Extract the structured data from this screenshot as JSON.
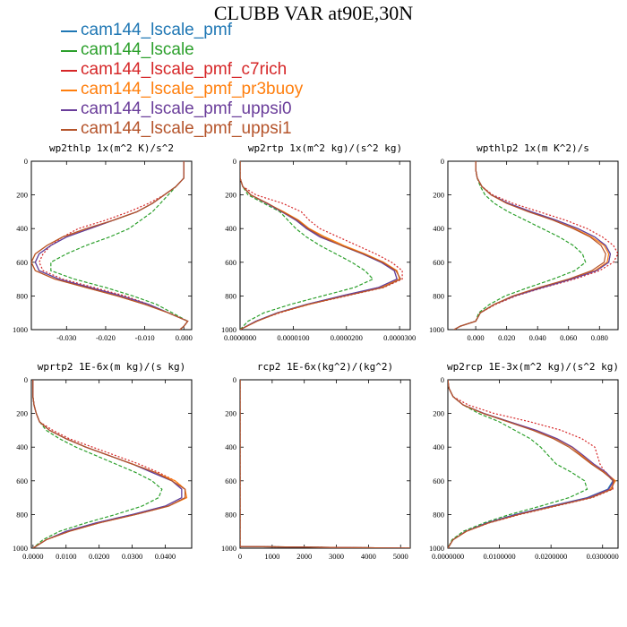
{
  "title": "CLUBB VAR at90E,30N",
  "series": [
    {
      "name": "cam144_lscale_pmf",
      "color": "#1f77b4",
      "dash": ""
    },
    {
      "name": "cam144_lscale",
      "color": "#2ca02c",
      "dash": "4,2"
    },
    {
      "name": "cam144_lscale_pmf_c7rich",
      "color": "#d62728",
      "dash": "2,2"
    },
    {
      "name": "cam144_lscale_pmf_pr3buoy",
      "color": "#ff7f0e",
      "dash": ""
    },
    {
      "name": "cam144_lscale_pmf_uppsi0",
      "color": "#6a3d9a",
      "dash": ""
    },
    {
      "name": "cam144_lscale_pmf_uppsi1",
      "color": "#b5542b",
      "dash": ""
    }
  ],
  "chart_data": [
    {
      "type": "line",
      "title": "wp2thlp  1x(m^2 K)/s^2",
      "xlim": [
        -0.039,
        0.002
      ],
      "ylim": [
        0,
        1000
      ],
      "y_inverted": true,
      "xticks": [
        -0.03,
        -0.02,
        -0.01,
        0.0
      ],
      "xtick_labels": [
        "-0.030",
        "-0.020",
        "-0.010",
        "0.000"
      ],
      "yticks": [
        0,
        200,
        400,
        600,
        800,
        1000
      ],
      "y": [
        0,
        100,
        150,
        200,
        250,
        300,
        350,
        400,
        450,
        500,
        550,
        600,
        650,
        700,
        750,
        800,
        850,
        900,
        950,
        980,
        1000
      ],
      "series_values": [
        [
          0,
          0,
          -0.002,
          -0.005,
          -0.008,
          -0.012,
          -0.018,
          -0.024,
          -0.03,
          -0.034,
          -0.037,
          -0.038,
          -0.037,
          -0.032,
          -0.024,
          -0.016,
          -0.009,
          -0.004,
          0.001,
          0.0,
          -0.001
        ],
        [
          0,
          0,
          -0.002,
          -0.004,
          -0.006,
          -0.008,
          -0.011,
          -0.014,
          -0.019,
          -0.025,
          -0.03,
          -0.034,
          -0.034,
          -0.028,
          -0.02,
          -0.013,
          -0.007,
          -0.003,
          0.001,
          0.0,
          -0.001
        ],
        [
          0,
          0,
          -0.002,
          -0.005,
          -0.009,
          -0.014,
          -0.02,
          -0.027,
          -0.031,
          -0.034,
          -0.036,
          -0.037,
          -0.036,
          -0.031,
          -0.023,
          -0.015,
          -0.009,
          -0.004,
          0.001,
          0.0,
          -0.001
        ],
        [
          0,
          0,
          -0.002,
          -0.005,
          -0.008,
          -0.012,
          -0.018,
          -0.024,
          -0.031,
          -0.035,
          -0.038,
          -0.039,
          -0.038,
          -0.033,
          -0.025,
          -0.017,
          -0.01,
          -0.004,
          0.001,
          0.0,
          -0.001
        ],
        [
          0,
          0,
          -0.002,
          -0.005,
          -0.008,
          -0.012,
          -0.018,
          -0.024,
          -0.03,
          -0.034,
          -0.037,
          -0.038,
          -0.037,
          -0.032,
          -0.024,
          -0.016,
          -0.009,
          -0.004,
          0.001,
          0.0,
          -0.001
        ],
        [
          0,
          0,
          -0.002,
          -0.005,
          -0.008,
          -0.012,
          -0.018,
          -0.025,
          -0.031,
          -0.035,
          -0.038,
          -0.039,
          -0.038,
          -0.033,
          -0.025,
          -0.017,
          -0.01,
          -0.004,
          0.001,
          0.0,
          -0.001
        ]
      ]
    },
    {
      "type": "line",
      "title": "wp2rtp  1x(m^2 kg)/(s^2 kg)",
      "xlim": [
        0,
        3.2e-05
      ],
      "ylim": [
        0,
        1000
      ],
      "y_inverted": true,
      "xticks": [
        0,
        1e-05,
        2e-05,
        3e-05
      ],
      "xtick_labels": [
        "0.0000000",
        "0.0000100",
        "0.0000200",
        "0.0000300"
      ],
      "yticks": [
        0,
        200,
        400,
        600,
        800,
        1000
      ],
      "y": [
        0,
        100,
        150,
        200,
        250,
        300,
        350,
        400,
        450,
        500,
        550,
        600,
        650,
        700,
        750,
        800,
        850,
        900,
        950,
        1000
      ],
      "series_values": [
        [
          0,
          0,
          5e-07,
          2e-06,
          5e-06,
          8e-06,
          1.05e-05,
          1.25e-05,
          1.55e-05,
          1.9e-05,
          2.3e-05,
          2.65e-05,
          2.9e-05,
          2.95e-05,
          2.6e-05,
          1.9e-05,
          1.25e-05,
          7e-06,
          3e-06,
          0
        ],
        [
          0,
          0,
          5e-07,
          1.5e-06,
          4.5e-06,
          7.5e-06,
          9e-06,
          1.05e-05,
          1.25e-05,
          1.5e-05,
          1.8e-05,
          2.1e-05,
          2.35e-05,
          2.5e-05,
          2.15e-05,
          1.55e-05,
          9.5e-06,
          4.5e-06,
          1.5e-06,
          0
        ],
        [
          0,
          0,
          5e-07,
          3e-06,
          8e-06,
          1.15e-05,
          1.3e-05,
          1.5e-05,
          1.85e-05,
          2.2e-05,
          2.55e-05,
          2.85e-05,
          3.05e-05,
          3.05e-05,
          2.7e-05,
          2e-05,
          1.3e-05,
          7.5e-06,
          3e-06,
          0
        ],
        [
          0,
          0,
          5e-07,
          2e-06,
          5e-06,
          8.2e-06,
          1.1e-05,
          1.3e-05,
          1.6e-05,
          1.95e-05,
          2.35e-05,
          2.7e-05,
          2.95e-05,
          3e-05,
          2.65e-05,
          1.95e-05,
          1.3e-05,
          7.2e-06,
          3.2e-06,
          0
        ],
        [
          0,
          0,
          5e-07,
          2e-06,
          5e-06,
          7.8e-06,
          1.05e-05,
          1.25e-05,
          1.5e-05,
          1.9e-05,
          2.3e-05,
          2.65e-05,
          2.9e-05,
          2.95e-05,
          2.6e-05,
          1.9e-05,
          1.25e-05,
          7e-06,
          3e-06,
          0
        ],
        [
          0,
          0,
          5e-07,
          2e-06,
          5.2e-06,
          8e-06,
          1.08e-05,
          1.28e-05,
          1.55e-05,
          1.9e-05,
          2.32e-05,
          2.68e-05,
          2.93e-05,
          3.02e-05,
          2.68e-05,
          1.97e-05,
          1.28e-05,
          7.2e-06,
          3.2e-06,
          0
        ]
      ]
    },
    {
      "type": "line",
      "title": "wpthlp2  1x(m K^2)/s",
      "xlim": [
        -0.018,
        0.092
      ],
      "ylim": [
        0,
        1000
      ],
      "y_inverted": true,
      "xticks": [
        0,
        0.02,
        0.04,
        0.06,
        0.08
      ],
      "xtick_labels": [
        "0.000",
        "0.020",
        "0.040",
        "0.060",
        "0.080"
      ],
      "yticks": [
        0,
        200,
        400,
        600,
        800,
        1000
      ],
      "y": [
        0,
        50,
        100,
        150,
        200,
        250,
        300,
        350,
        400,
        450,
        500,
        550,
        600,
        650,
        700,
        750,
        800,
        850,
        900,
        950,
        980,
        1000
      ],
      "series_values": [
        [
          0,
          0,
          0.001,
          0.004,
          0.01,
          0.021,
          0.036,
          0.052,
          0.066,
          0.077,
          0.084,
          0.087,
          0.086,
          0.078,
          0.062,
          0.043,
          0.025,
          0.012,
          0.003,
          0.0,
          -0.01,
          -0.014
        ],
        [
          0,
          0,
          0.001,
          0.003,
          0.006,
          0.012,
          0.021,
          0.032,
          0.043,
          0.054,
          0.063,
          0.069,
          0.071,
          0.064,
          0.05,
          0.034,
          0.019,
          0.009,
          0.002,
          0.0,
          -0.01,
          -0.014
        ],
        [
          0,
          0,
          0.001,
          0.004,
          0.011,
          0.024,
          0.041,
          0.058,
          0.072,
          0.082,
          0.089,
          0.092,
          0.089,
          0.08,
          0.064,
          0.044,
          0.026,
          0.013,
          0.003,
          0.0,
          -0.01,
          -0.014
        ],
        [
          0,
          0,
          0.001,
          0.004,
          0.01,
          0.02,
          0.035,
          0.05,
          0.064,
          0.075,
          0.083,
          0.086,
          0.085,
          0.077,
          0.061,
          0.042,
          0.025,
          0.012,
          0.003,
          0.0,
          -0.01,
          -0.014
        ],
        [
          0,
          0,
          0.001,
          0.004,
          0.01,
          0.021,
          0.036,
          0.052,
          0.066,
          0.077,
          0.084,
          0.087,
          0.086,
          0.078,
          0.062,
          0.043,
          0.025,
          0.012,
          0.003,
          0.0,
          -0.01,
          -0.014
        ],
        [
          0,
          0,
          0.001,
          0.004,
          0.01,
          0.02,
          0.034,
          0.05,
          0.063,
          0.074,
          0.081,
          0.084,
          0.083,
          0.075,
          0.06,
          0.041,
          0.024,
          0.012,
          0.003,
          0.0,
          -0.01,
          -0.014
        ]
      ]
    },
    {
      "type": "line",
      "title": "wprtp2  1E-6x(m kg)/(s kg)",
      "xlim": [
        -0.0005,
        0.048
      ],
      "ylim": [
        0,
        1000
      ],
      "y_inverted": true,
      "xticks": [
        0,
        0.01,
        0.02,
        0.03,
        0.04
      ],
      "xtick_labels": [
        "0.0000",
        "0.0100",
        "0.0200",
        "0.0300",
        "0.0400"
      ],
      "yticks": [
        0,
        200,
        400,
        600,
        800,
        1000
      ],
      "y": [
        0,
        100,
        150,
        200,
        250,
        300,
        350,
        400,
        450,
        500,
        550,
        600,
        650,
        700,
        750,
        800,
        850,
        900,
        950,
        1000
      ],
      "series_values": [
        [
          0,
          0,
          0.0003,
          0.001,
          0.002,
          0.005,
          0.01,
          0.016,
          0.023,
          0.03,
          0.036,
          0.042,
          0.045,
          0.045,
          0.04,
          0.03,
          0.019,
          0.01,
          0.004,
          0
        ],
        [
          0,
          0,
          0.0003,
          0.001,
          0.002,
          0.004,
          0.008,
          0.013,
          0.019,
          0.025,
          0.031,
          0.036,
          0.039,
          0.038,
          0.033,
          0.025,
          0.016,
          0.008,
          0.003,
          0
        ],
        [
          0,
          0,
          0.0003,
          0.001,
          0.002,
          0.006,
          0.011,
          0.018,
          0.025,
          0.032,
          0.038,
          0.043,
          0.046,
          0.046,
          0.041,
          0.031,
          0.02,
          0.011,
          0.004,
          0
        ],
        [
          0,
          0,
          0.0003,
          0.001,
          0.002,
          0.005,
          0.01,
          0.016,
          0.023,
          0.03,
          0.037,
          0.043,
          0.046,
          0.0465,
          0.041,
          0.031,
          0.02,
          0.011,
          0.004,
          0
        ],
        [
          0,
          0,
          0.0003,
          0.001,
          0.002,
          0.005,
          0.01,
          0.016,
          0.023,
          0.03,
          0.036,
          0.042,
          0.045,
          0.045,
          0.04,
          0.03,
          0.019,
          0.01,
          0.004,
          0
        ],
        [
          0,
          0,
          0.0003,
          0.001,
          0.002,
          0.005,
          0.01,
          0.016,
          0.023,
          0.03,
          0.037,
          0.042,
          0.046,
          0.046,
          0.041,
          0.031,
          0.02,
          0.011,
          0.004,
          0
        ]
      ]
    },
    {
      "type": "line",
      "title": "rcp2  1E-6x(kg^2)/(kg^2)",
      "xlim": [
        0,
        5300
      ],
      "ylim": [
        0,
        1000
      ],
      "y_inverted": true,
      "xticks": [
        0,
        1000,
        2000,
        3000,
        4000,
        5000
      ],
      "xtick_labels": [
        "0",
        "1000",
        "2000",
        "3000",
        "4000",
        "5000"
      ],
      "yticks": [
        0,
        200,
        400,
        600,
        800,
        1000
      ],
      "y": [
        0,
        200,
        400,
        600,
        800,
        990,
        1000
      ],
      "series_values": [
        [
          0,
          0,
          0,
          0,
          0,
          0,
          5300
        ],
        [
          0,
          0,
          0,
          0,
          0,
          0,
          5300
        ],
        [
          0,
          0,
          0,
          0,
          0,
          0,
          5300
        ],
        [
          0,
          0,
          0,
          0,
          0,
          0,
          5300
        ],
        [
          0,
          0,
          0,
          0,
          0,
          0,
          5300
        ],
        [
          0,
          0,
          0,
          0,
          0,
          0,
          5300
        ]
      ]
    },
    {
      "type": "line",
      "title": "wp2rcp  1E-3x(m^2 kg)/(s^2 kg)",
      "xlim": [
        0,
        0.033
      ],
      "ylim": [
        0,
        1000
      ],
      "y_inverted": true,
      "xticks": [
        0,
        0.01,
        0.02,
        0.03
      ],
      "xtick_labels": [
        "0.0000000",
        "0.0100000",
        "0.0200000",
        "0.0300000"
      ],
      "yticks": [
        0,
        200,
        400,
        600,
        800,
        1000
      ],
      "y": [
        0,
        50,
        100,
        150,
        200,
        250,
        300,
        350,
        400,
        450,
        500,
        550,
        600,
        650,
        700,
        750,
        800,
        850,
        900,
        950,
        1000
      ],
      "series_values": [
        [
          0,
          0.0002,
          0.001,
          0.003,
          0.007,
          0.012,
          0.017,
          0.021,
          0.024,
          0.026,
          0.028,
          0.0305,
          0.032,
          0.031,
          0.027,
          0.02,
          0.013,
          0.0075,
          0.0035,
          0.001,
          0
        ],
        [
          0,
          0.0002,
          0.001,
          0.003,
          0.006,
          0.01,
          0.013,
          0.016,
          0.018,
          0.0195,
          0.021,
          0.024,
          0.0265,
          0.027,
          0.0235,
          0.018,
          0.012,
          0.007,
          0.003,
          0.0008,
          0
        ],
        [
          0,
          0.0002,
          0.001,
          0.004,
          0.009,
          0.016,
          0.022,
          0.026,
          0.0285,
          0.029,
          0.0295,
          0.0305,
          0.032,
          0.032,
          0.028,
          0.021,
          0.014,
          0.008,
          0.0035,
          0.001,
          0
        ],
        [
          0,
          0.0002,
          0.001,
          0.003,
          0.007,
          0.012,
          0.017,
          0.021,
          0.024,
          0.026,
          0.028,
          0.0305,
          0.0325,
          0.0315,
          0.0275,
          0.0205,
          0.0135,
          0.0078,
          0.0036,
          0.001,
          0
        ],
        [
          0,
          0.0002,
          0.001,
          0.003,
          0.007,
          0.012,
          0.0172,
          0.0212,
          0.0242,
          0.0263,
          0.0283,
          0.0307,
          0.0322,
          0.0312,
          0.0272,
          0.0202,
          0.0132,
          0.0076,
          0.0035,
          0.001,
          0
        ],
        [
          0,
          0.0002,
          0.001,
          0.003,
          0.0068,
          0.0117,
          0.0165,
          0.0205,
          0.0235,
          0.0257,
          0.0278,
          0.0302,
          0.0322,
          0.0318,
          0.0278,
          0.0207,
          0.0137,
          0.0079,
          0.0036,
          0.001,
          0
        ]
      ]
    }
  ]
}
